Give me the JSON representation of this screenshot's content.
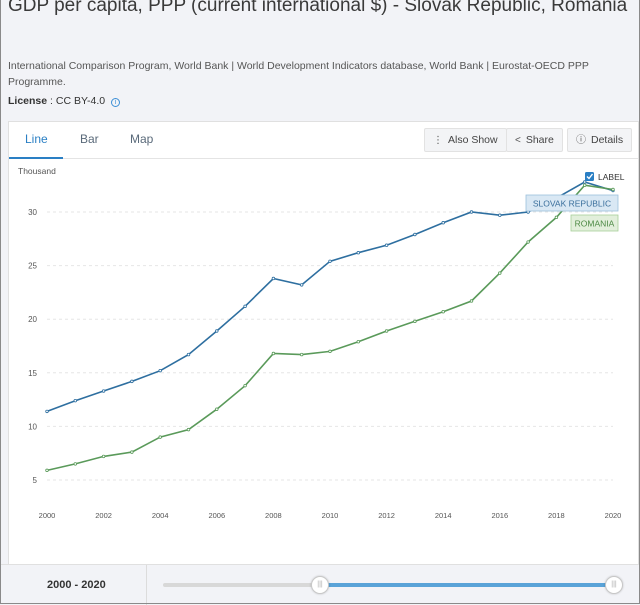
{
  "header": {
    "title": "GDP per capita, PPP (current international $) - Slovak Republic, Romania",
    "source": "International Comparison Program, World Bank | World Development Indicators database, World Bank | Eurostat-OECD PPP Programme.",
    "license_label": "License",
    "license_value": " : CC BY-4.0"
  },
  "tabs": [
    {
      "label": "Line"
    },
    {
      "label": "Bar"
    },
    {
      "label": "Map"
    }
  ],
  "toolbar": {
    "also_show": "Also Show",
    "share": "Share",
    "details": "Details"
  },
  "label_toggle": {
    "text": "LABEL",
    "checked": true
  },
  "slider": {
    "range_label": "2000 - 2020",
    "start": 2008,
    "end": 2020
  },
  "colors": {
    "slovak": "#2e6fa0",
    "romania": "#5a9a5a",
    "accent": "#2a7fc4"
  },
  "chart_data": {
    "type": "line",
    "unit_label": "Thousand",
    "x": [
      2000,
      2001,
      2002,
      2003,
      2004,
      2005,
      2006,
      2007,
      2008,
      2009,
      2010,
      2011,
      2012,
      2013,
      2014,
      2015,
      2016,
      2017,
      2018,
      2019,
      2020
    ],
    "xticks": [
      "2000",
      "2002",
      "2004",
      "2006",
      "2008",
      "2010",
      "2012",
      "2014",
      "2016",
      "2018",
      "2020"
    ],
    "yticks": [
      "5",
      "10",
      "15",
      "20",
      "25",
      "30"
    ],
    "ylim": [
      2,
      33
    ],
    "grid": true,
    "series": [
      {
        "name": "SLOVAK REPUBLIC",
        "values": [
          11.4,
          12.4,
          13.3,
          14.2,
          15.2,
          16.7,
          18.9,
          21.2,
          23.8,
          23.2,
          25.4,
          26.2,
          26.9,
          27.9,
          29.0,
          30.0,
          29.7,
          30.0,
          31.3,
          32.8,
          32.0
        ]
      },
      {
        "name": "ROMANIA",
        "values": [
          5.9,
          6.5,
          7.2,
          7.6,
          9.0,
          9.7,
          11.6,
          13.8,
          16.8,
          16.7,
          17.0,
          17.9,
          18.9,
          19.8,
          20.7,
          21.7,
          24.3,
          27.2,
          29.5,
          32.5,
          32.1
        ]
      }
    ]
  }
}
